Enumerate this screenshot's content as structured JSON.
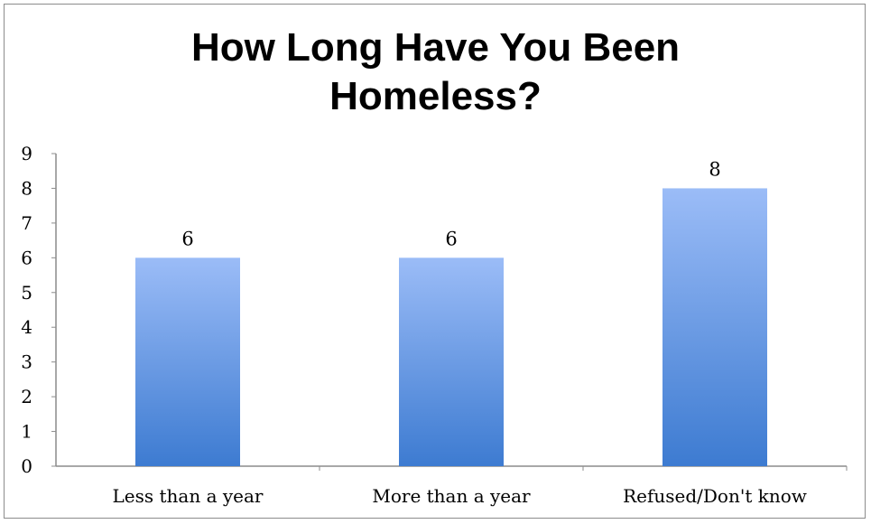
{
  "chart_data": {
    "type": "bar",
    "title": "How Long Have You Been\nHomeless?",
    "categories": [
      "Less than a year",
      "More than a year",
      "Refused/Don't know"
    ],
    "values": [
      6,
      6,
      8
    ],
    "data_labels": [
      "6",
      "6",
      "8"
    ],
    "ylim": [
      0,
      9
    ],
    "yticks": [
      "0",
      "1",
      "2",
      "3",
      "4",
      "5",
      "6",
      "7",
      "8",
      "9"
    ],
    "xlabel": "",
    "ylabel": "",
    "grid": false,
    "legend": "none",
    "colors": {
      "bar_top": "#9bbcf7",
      "bar_bottom": "#3d7bd1",
      "axis": "#8c8c8c"
    }
  }
}
